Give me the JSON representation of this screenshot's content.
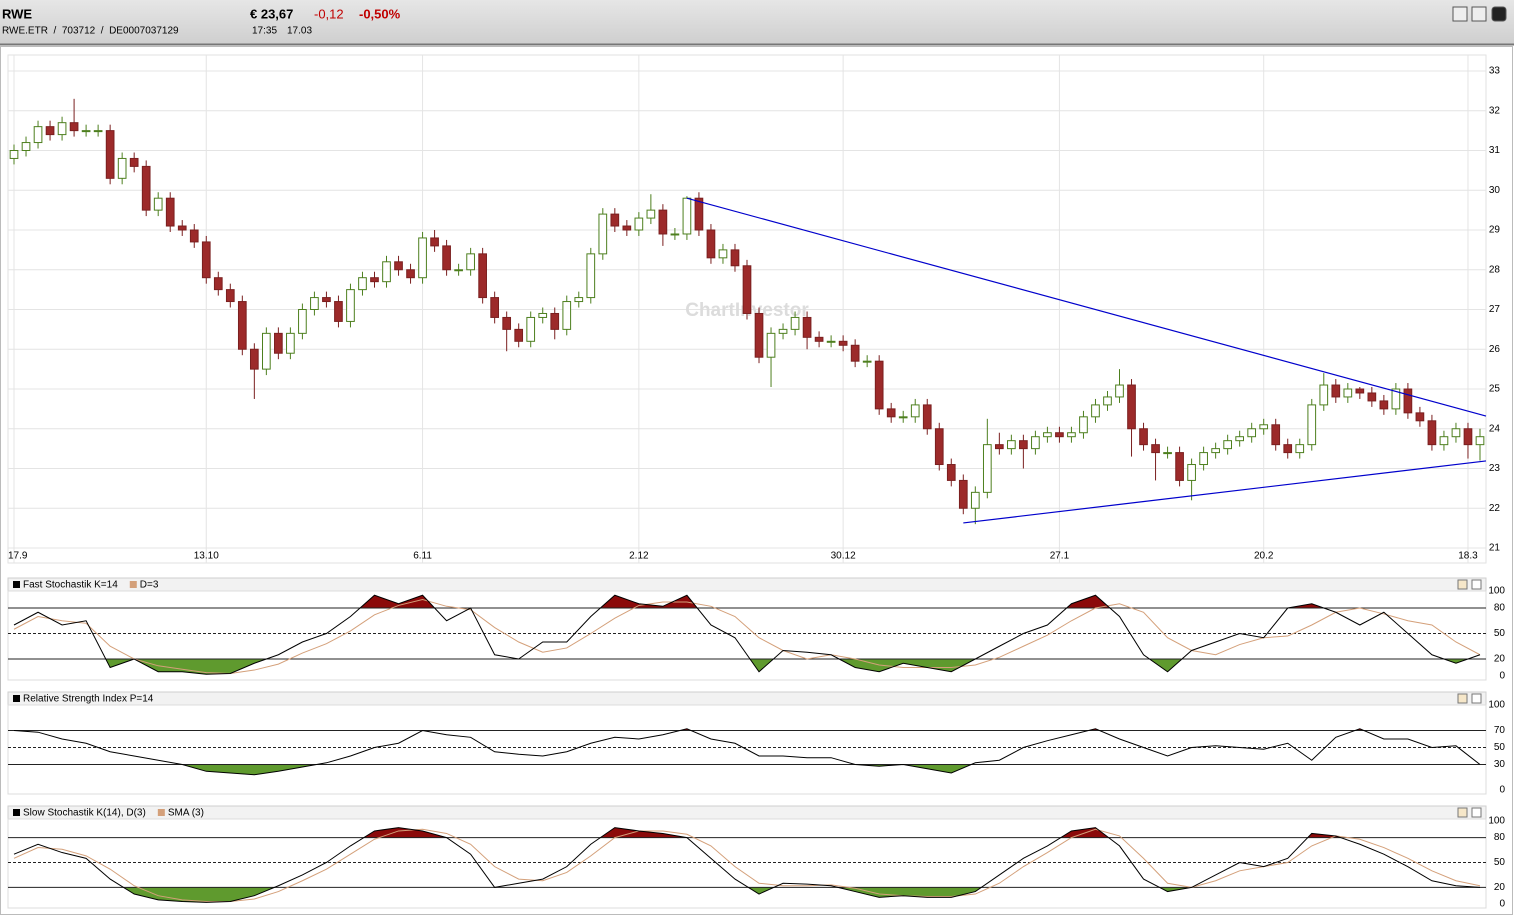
{
  "header": {
    "symbol": "RWE",
    "price": "€ 23,67",
    "change": "-0,12",
    "change_pct": "-0,50%",
    "ids": "RWE.ETR  /  703712  /  DE0007037129",
    "time": "17:35",
    "date": "17.03"
  },
  "chart_data": [
    {
      "type": "candlestick",
      "watermark": "ChartInvestor",
      "categories": [
        "17.9",
        null,
        null,
        null,
        null,
        null,
        null,
        null,
        null,
        null,
        null,
        null,
        null,
        null,
        null,
        null,
        "13.10",
        null,
        null,
        null,
        null,
        null,
        null,
        null,
        null,
        null,
        null,
        null,
        null,
        null,
        null,
        null,
        null,
        null,
        "6.11",
        null,
        null,
        null,
        null,
        null,
        null,
        null,
        null,
        null,
        null,
        null,
        null,
        null,
        null,
        null,
        null,
        null,
        "2.12",
        null,
        null,
        null,
        null,
        null,
        null,
        null,
        null,
        null,
        null,
        null,
        null,
        null,
        null,
        null,
        null,
        "30.12",
        null,
        null,
        null,
        null,
        null,
        null,
        null,
        null,
        null,
        null,
        null,
        null,
        null,
        null,
        null,
        null,
        null,
        "27.1",
        null,
        null,
        null,
        null,
        null,
        null,
        null,
        null,
        null,
        null,
        null,
        null,
        null,
        null,
        null,
        null,
        "20.2",
        null,
        null,
        null,
        null,
        null,
        null,
        null,
        null,
        null,
        null,
        null,
        null,
        null,
        null,
        null,
        null,
        "18.3",
        null
      ],
      "ohlc": [
        [
          30.8,
          31.15,
          30.65,
          31.0
        ],
        [
          31.0,
          31.35,
          30.85,
          31.2
        ],
        [
          31.2,
          31.75,
          31.05,
          31.6
        ],
        [
          31.6,
          31.75,
          31.25,
          31.4
        ],
        [
          31.4,
          31.85,
          31.25,
          31.7
        ],
        [
          31.7,
          32.3,
          31.35,
          31.5
        ],
        [
          31.5,
          31.65,
          31.35,
          31.5
        ],
        [
          31.5,
          31.65,
          31.35,
          31.5
        ],
        [
          31.5,
          31.65,
          30.15,
          30.3
        ],
        [
          30.3,
          30.95,
          30.15,
          30.8
        ],
        [
          30.8,
          30.95,
          30.45,
          30.6
        ],
        [
          30.6,
          30.75,
          29.35,
          29.5
        ],
        [
          29.5,
          29.95,
          29.35,
          29.8
        ],
        [
          29.8,
          29.95,
          28.95,
          29.1
        ],
        [
          29.1,
          29.25,
          28.85,
          29.0
        ],
        [
          29.0,
          29.15,
          28.55,
          28.7
        ],
        [
          28.7,
          28.85,
          27.65,
          27.8
        ],
        [
          27.8,
          27.95,
          27.35,
          27.5
        ],
        [
          27.5,
          27.65,
          27.05,
          27.2
        ],
        [
          27.2,
          27.35,
          25.85,
          26.0
        ],
        [
          26.0,
          26.15,
          24.75,
          25.5
        ],
        [
          25.5,
          26.55,
          25.35,
          26.4
        ],
        [
          26.4,
          26.55,
          25.75,
          25.9
        ],
        [
          25.9,
          26.55,
          25.75,
          26.4
        ],
        [
          26.4,
          27.15,
          26.25,
          27.0
        ],
        [
          27.0,
          27.45,
          26.85,
          27.3
        ],
        [
          27.3,
          27.45,
          27.05,
          27.2
        ],
        [
          27.2,
          27.35,
          26.55,
          26.7
        ],
        [
          26.7,
          27.65,
          26.55,
          27.5
        ],
        [
          27.5,
          27.95,
          27.35,
          27.8
        ],
        [
          27.8,
          27.95,
          27.55,
          27.7
        ],
        [
          27.7,
          28.35,
          27.55,
          28.2
        ],
        [
          28.2,
          28.35,
          27.85,
          28.0
        ],
        [
          28.0,
          28.15,
          27.65,
          27.8
        ],
        [
          27.8,
          28.95,
          27.65,
          28.8
        ],
        [
          28.8,
          29.0,
          28.45,
          28.6
        ],
        [
          28.6,
          28.75,
          27.85,
          28.0
        ],
        [
          28.0,
          28.15,
          27.85,
          28.0
        ],
        [
          28.0,
          28.55,
          27.85,
          28.4
        ],
        [
          28.4,
          28.55,
          27.15,
          27.3
        ],
        [
          27.3,
          27.45,
          26.65,
          26.8
        ],
        [
          26.8,
          26.95,
          25.95,
          26.5
        ],
        [
          26.5,
          26.65,
          26.05,
          26.2
        ],
        [
          26.2,
          26.95,
          26.05,
          26.8
        ],
        [
          26.8,
          27.05,
          26.65,
          26.9
        ],
        [
          26.9,
          27.05,
          26.25,
          26.5
        ],
        [
          26.5,
          27.35,
          26.35,
          27.2
        ],
        [
          27.2,
          27.45,
          27.05,
          27.3
        ],
        [
          27.3,
          28.55,
          27.15,
          28.4
        ],
        [
          28.4,
          29.55,
          28.25,
          29.4
        ],
        [
          29.4,
          29.55,
          28.95,
          29.1
        ],
        [
          29.1,
          29.25,
          28.85,
          29.0
        ],
        [
          29.0,
          29.45,
          28.85,
          29.3
        ],
        [
          29.3,
          29.9,
          29.15,
          29.5
        ],
        [
          29.5,
          29.65,
          28.6,
          28.9
        ],
        [
          28.9,
          29.05,
          28.75,
          28.9
        ],
        [
          28.9,
          29.85,
          28.75,
          29.8
        ],
        [
          29.8,
          29.95,
          28.85,
          29.0
        ],
        [
          29.0,
          29.15,
          28.15,
          28.3
        ],
        [
          28.3,
          28.65,
          28.15,
          28.5
        ],
        [
          28.5,
          28.65,
          27.95,
          28.1
        ],
        [
          28.1,
          28.25,
          26.75,
          26.9
        ],
        [
          26.9,
          27.05,
          25.65,
          25.8
        ],
        [
          25.8,
          26.55,
          25.05,
          26.4
        ],
        [
          26.4,
          26.65,
          26.25,
          26.5
        ],
        [
          26.5,
          26.95,
          26.35,
          26.8
        ],
        [
          26.8,
          26.95,
          26.0,
          26.3
        ],
        [
          26.3,
          26.45,
          26.05,
          26.2
        ],
        [
          26.2,
          26.35,
          26.05,
          26.2
        ],
        [
          26.2,
          26.35,
          25.95,
          26.1
        ],
        [
          26.1,
          26.25,
          25.55,
          25.7
        ],
        [
          25.7,
          25.85,
          25.55,
          25.7
        ],
        [
          25.7,
          25.85,
          24.35,
          24.5
        ],
        [
          24.5,
          24.65,
          24.15,
          24.3
        ],
        [
          24.3,
          24.45,
          24.15,
          24.3
        ],
        [
          24.3,
          24.75,
          24.15,
          24.6
        ],
        [
          24.6,
          24.75,
          23.85,
          24.0
        ],
        [
          24.0,
          24.15,
          22.95,
          23.1
        ],
        [
          23.1,
          23.25,
          22.55,
          22.7
        ],
        [
          22.7,
          22.85,
          21.85,
          22.0
        ],
        [
          22.0,
          22.55,
          21.6,
          22.4
        ],
        [
          22.4,
          24.25,
          22.25,
          23.6
        ],
        [
          23.6,
          23.9,
          23.35,
          23.5
        ],
        [
          23.5,
          23.85,
          23.35,
          23.7
        ],
        [
          23.7,
          23.85,
          23.0,
          23.5
        ],
        [
          23.5,
          23.95,
          23.35,
          23.8
        ],
        [
          23.8,
          24.05,
          23.65,
          23.9
        ],
        [
          23.9,
          24.05,
          23.65,
          23.8
        ],
        [
          23.8,
          24.05,
          23.65,
          23.9
        ],
        [
          23.9,
          24.45,
          23.75,
          24.3
        ],
        [
          24.3,
          24.75,
          24.15,
          24.6
        ],
        [
          24.6,
          24.95,
          24.45,
          24.8
        ],
        [
          24.8,
          25.5,
          24.65,
          25.1
        ],
        [
          25.1,
          25.25,
          23.3,
          24.0
        ],
        [
          24.0,
          24.15,
          23.45,
          23.6
        ],
        [
          23.6,
          23.75,
          22.7,
          23.4
        ],
        [
          23.4,
          23.55,
          23.25,
          23.4
        ],
        [
          23.4,
          23.55,
          22.55,
          22.7
        ],
        [
          22.7,
          23.25,
          22.2,
          23.1
        ],
        [
          23.1,
          23.55,
          22.95,
          23.4
        ],
        [
          23.4,
          23.65,
          23.25,
          23.5
        ],
        [
          23.5,
          23.85,
          23.35,
          23.7
        ],
        [
          23.7,
          23.95,
          23.55,
          23.8
        ],
        [
          23.8,
          24.15,
          23.65,
          24.0
        ],
        [
          24.0,
          24.25,
          23.85,
          24.1
        ],
        [
          24.1,
          24.25,
          23.45,
          23.6
        ],
        [
          23.6,
          23.75,
          23.25,
          23.4
        ],
        [
          23.4,
          23.75,
          23.25,
          23.6
        ],
        [
          23.6,
          24.75,
          23.45,
          24.6
        ],
        [
          24.6,
          25.4,
          24.45,
          25.1
        ],
        [
          25.1,
          25.25,
          24.65,
          24.8
        ],
        [
          24.8,
          25.15,
          24.65,
          25.0
        ],
        [
          25.0,
          25.05,
          24.75,
          24.9
        ],
        [
          24.9,
          25.05,
          24.55,
          24.7
        ],
        [
          24.7,
          24.85,
          24.35,
          24.5
        ],
        [
          24.5,
          25.15,
          24.35,
          25.0
        ],
        [
          25.0,
          25.15,
          24.25,
          24.4
        ],
        [
          24.4,
          24.55,
          24.05,
          24.2
        ],
        [
          24.2,
          24.35,
          23.45,
          23.6
        ],
        [
          23.6,
          23.95,
          23.45,
          23.8
        ],
        [
          23.8,
          24.15,
          23.65,
          24.0
        ],
        [
          24.0,
          24.15,
          23.25,
          23.6
        ],
        [
          23.6,
          24.0,
          23.2,
          23.8
        ]
      ],
      "up_color": "#ffffff",
      "up_edge": "#4d7f1e",
      "down_color": "#9c2a2a",
      "down_edge": "#7a1f1f",
      "ylim": [
        21,
        33
      ],
      "yticks": [
        21,
        22,
        23,
        24,
        25,
        26,
        27,
        28,
        29,
        30,
        31,
        32,
        33
      ],
      "grid": true,
      "trendlines": [
        {
          "color": "#0000cc",
          "x": [
            56,
            122.5
          ],
          "y": [
            29.8,
            24.32
          ]
        },
        {
          "color": "#0000cc",
          "x": [
            79,
            122.5
          ],
          "y": [
            21.63,
            23.19
          ]
        }
      ]
    },
    {
      "type": "oscillator",
      "ylim": [
        0,
        100
      ],
      "yticks": [
        0,
        20,
        50,
        80,
        100
      ],
      "upper_level": 80,
      "mid_level": 50,
      "lower_level": 20,
      "fill_above": "#8b0a0a",
      "fill_below": "#5f9a2e",
      "series": [
        {
          "name": "Fast Stochastik K=14",
          "color": "#000000",
          "values": [
            60,
            75,
            60,
            65,
            10,
            20,
            5,
            5,
            2,
            3,
            15,
            25,
            40,
            50,
            70,
            95,
            85,
            95,
            65,
            80,
            25,
            20,
            40,
            40,
            70,
            95,
            85,
            82,
            95,
            60,
            45,
            5,
            30,
            28,
            25,
            10,
            5,
            15,
            10,
            5,
            20,
            35,
            50,
            60,
            85,
            95,
            70,
            25,
            5,
            30,
            40,
            50,
            45,
            80,
            85,
            75,
            60,
            75,
            50,
            25,
            15,
            25
          ]
        },
        {
          "name": "D=3",
          "color": "#d4a07a",
          "values": [
            55,
            70,
            65,
            62,
            35,
            20,
            12,
            8,
            4,
            3,
            7,
            14,
            27,
            38,
            53,
            72,
            83,
            90,
            82,
            78,
            57,
            40,
            28,
            33,
            50,
            68,
            83,
            87,
            87,
            82,
            70,
            45,
            30,
            20,
            25,
            20,
            13,
            10,
            10,
            10,
            13,
            22,
            35,
            48,
            65,
            80,
            85,
            75,
            45,
            30,
            25,
            37,
            45,
            47,
            60,
            75,
            80,
            73,
            65,
            60,
            40,
            25
          ]
        }
      ]
    },
    {
      "type": "oscillator",
      "ylim": [
        0,
        100
      ],
      "yticks": [
        0,
        30,
        50,
        70,
        100
      ],
      "upper_level": 70,
      "mid_level": 50,
      "lower_level": 30,
      "fill_above": "#8b0a0a",
      "fill_below": "#5f9a2e",
      "series": [
        {
          "name": "Relative Strength Index P=14",
          "color": "#000000",
          "values": [
            70,
            68,
            60,
            55,
            45,
            40,
            35,
            30,
            22,
            20,
            18,
            22,
            27,
            32,
            40,
            50,
            55,
            70,
            65,
            62,
            45,
            42,
            40,
            45,
            55,
            62,
            60,
            65,
            72,
            60,
            55,
            40,
            40,
            38,
            38,
            30,
            28,
            30,
            25,
            20,
            32,
            35,
            50,
            58,
            65,
            72,
            60,
            50,
            40,
            50,
            52,
            50,
            48,
            55,
            35,
            62,
            72,
            60,
            60,
            50,
            52,
            30
          ]
        }
      ]
    },
    {
      "type": "oscillator",
      "ylim": [
        0,
        100
      ],
      "yticks": [
        0,
        20,
        50,
        80,
        100
      ],
      "upper_level": 80,
      "mid_level": 50,
      "lower_level": 20,
      "fill_above": "#8b0a0a",
      "fill_below": "#5f9a2e",
      "series": [
        {
          "name": "Slow Stochastik K(14), D(3)",
          "color": "#000000",
          "values": [
            60,
            72,
            62,
            55,
            30,
            12,
            5,
            3,
            2,
            3,
            10,
            22,
            35,
            50,
            70,
            88,
            92,
            88,
            80,
            60,
            20,
            25,
            30,
            45,
            72,
            92,
            88,
            85,
            80,
            55,
            30,
            12,
            25,
            24,
            22,
            15,
            8,
            10,
            8,
            8,
            15,
            35,
            55,
            70,
            88,
            92,
            70,
            30,
            15,
            20,
            35,
            50,
            45,
            55,
            85,
            82,
            72,
            60,
            45,
            28,
            22,
            20
          ]
        },
        {
          "name": "SMA (3)",
          "color": "#d4a07a",
          "values": [
            55,
            68,
            66,
            58,
            42,
            22,
            10,
            5,
            3,
            3,
            6,
            15,
            28,
            42,
            60,
            78,
            88,
            90,
            85,
            72,
            45,
            30,
            28,
            38,
            58,
            80,
            88,
            88,
            84,
            70,
            45,
            25,
            22,
            22,
            23,
            19,
            12,
            10,
            9,
            9,
            12,
            25,
            45,
            62,
            80,
            90,
            82,
            55,
            25,
            20,
            28,
            40,
            45,
            50,
            70,
            82,
            78,
            68,
            55,
            40,
            28,
            22
          ]
        }
      ]
    }
  ]
}
